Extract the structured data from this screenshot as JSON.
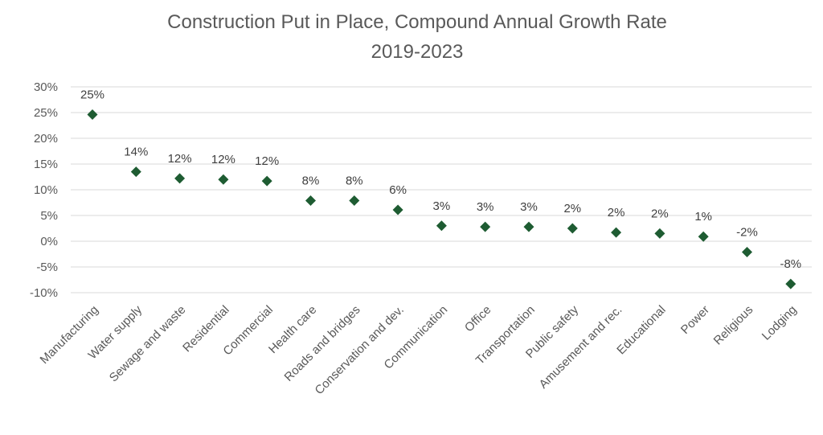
{
  "chart_data": {
    "type": "scatter",
    "title": "Construction Put in Place, Compound Annual Growth Rate",
    "subtitle": "2019-2023",
    "xlabel": "",
    "ylabel": "",
    "ylim": [
      -10,
      30
    ],
    "y_ticks": [
      30,
      25,
      20,
      15,
      10,
      5,
      0,
      -5,
      -10
    ],
    "y_tick_labels": [
      "30%",
      "25%",
      "20%",
      "15%",
      "10%",
      "5%",
      "0%",
      "-5%",
      "-10%"
    ],
    "grid": true,
    "marker": "diamond",
    "marker_color": "#1e5c32",
    "categories": [
      "Manufacturing",
      "Water supply",
      "Sewage and waste",
      "Residential",
      "Commercial",
      "Health care",
      "Roads and bridges",
      "Conservation and dev.",
      "Communication",
      "Office",
      "Transportation",
      "Public safety",
      "Amusement and rec.",
      "Educational",
      "Power",
      "Religious",
      "Lodging"
    ],
    "values": [
      24.6,
      13.5,
      12.2,
      12.0,
      11.7,
      7.9,
      7.9,
      6.1,
      3.0,
      2.8,
      2.8,
      2.5,
      1.7,
      1.5,
      0.9,
      -2.1,
      -8.3
    ],
    "data_labels": [
      "25%",
      "14%",
      "12%",
      "12%",
      "12%",
      "8%",
      "8%",
      "6%",
      "3%",
      "3%",
      "3%",
      "2%",
      "2%",
      "2%",
      "1%",
      "-2%",
      "-8%"
    ]
  }
}
